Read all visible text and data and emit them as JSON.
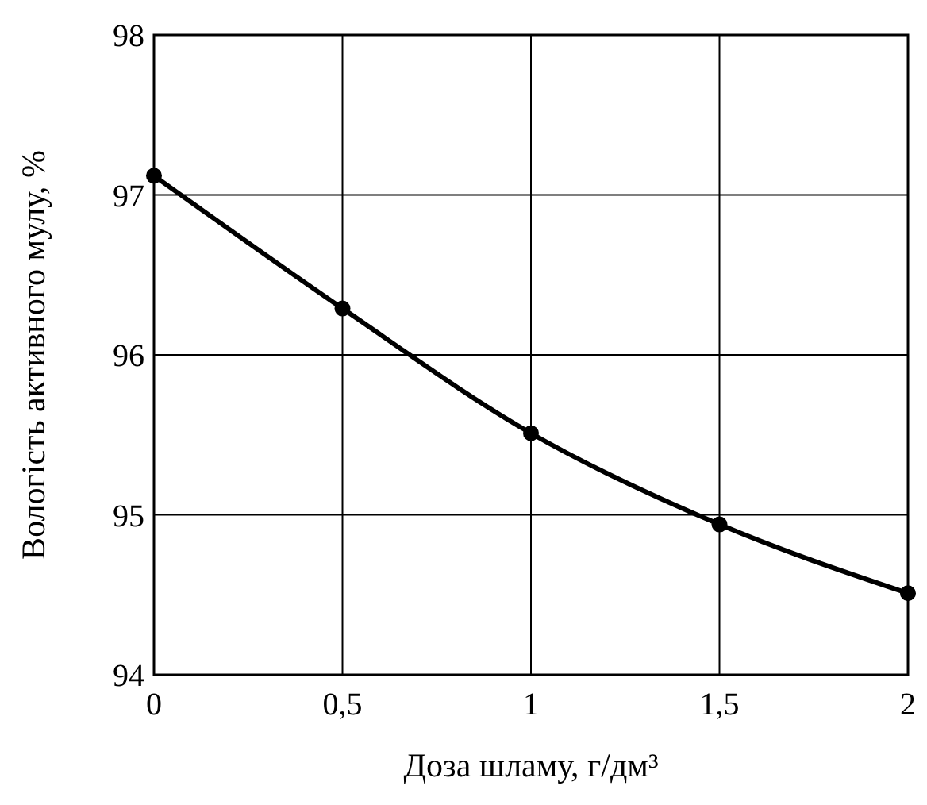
{
  "chart_data": {
    "type": "line",
    "xlabel": "Доза шламу, г/дм³",
    "ylabel": "Вологість активного мулу, %",
    "x": [
      0,
      0.5,
      1,
      1.5,
      2
    ],
    "series": [
      {
        "color": "#000000",
        "values": [
          97.12,
          96.29,
          95.51,
          94.94,
          94.51
        ]
      }
    ],
    "xlim": [
      0,
      2
    ],
    "xticks": [
      0,
      {
        "value": 0.5,
        "label": "0,5"
      },
      1,
      {
        "value": 1.5,
        "label": "1,5"
      },
      2
    ],
    "ylim": [
      94,
      98
    ],
    "yticks": [
      94,
      95,
      96,
      97,
      98
    ],
    "grid": true,
    "marker": "circle",
    "line_style": "solid"
  }
}
